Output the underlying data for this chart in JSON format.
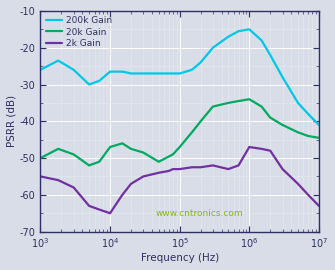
{
  "title": "",
  "xlabel": "Frequency (Hz)",
  "ylabel": "PSRR (dB)",
  "xlim": [
    1000,
    10000000
  ],
  "ylim": [
    -70,
    -10
  ],
  "yticks": [
    -70,
    -60,
    -50,
    -40,
    -30,
    -20,
    -10
  ],
  "plot_bg": "#d8dde8",
  "fig_bg": "#d8dde8",
  "grid_major_color": "#ffffff",
  "grid_minor_color": "#e8ecf2",
  "spine_color": "#2d3060",
  "tick_color": "#2d3060",
  "label_color": "#2d3060",
  "watermark": "www.cntronics.com",
  "watermark_color": "#88bb00",
  "series": [
    {
      "label": "200k Gain",
      "color": "#00c8e8",
      "lw": 1.6,
      "x": [
        1000,
        1800,
        3000,
        5000,
        7000,
        10000,
        15000,
        20000,
        30000,
        50000,
        80000,
        100000,
        150000,
        200000,
        300000,
        500000,
        700000,
        1000000,
        1500000,
        2000000,
        3000000,
        5000000,
        7000000,
        10000000
      ],
      "y": [
        -26,
        -23.5,
        -26,
        -30,
        -29,
        -26.5,
        -26.5,
        -27,
        -27,
        -27,
        -27,
        -27,
        -26,
        -24,
        -20,
        -17,
        -15.5,
        -15,
        -18,
        -22,
        -28,
        -35,
        -38,
        -41
      ]
    },
    {
      "label": "20k Gain",
      "color": "#00aa60",
      "lw": 1.6,
      "x": [
        1000,
        1800,
        3000,
        5000,
        7000,
        10000,
        15000,
        20000,
        30000,
        50000,
        80000,
        100000,
        150000,
        200000,
        300000,
        500000,
        700000,
        1000000,
        1500000,
        2000000,
        3000000,
        5000000,
        7000000,
        10000000
      ],
      "y": [
        -50,
        -47.5,
        -49,
        -52,
        -51,
        -47,
        -46,
        -47.5,
        -48.5,
        -51,
        -49,
        -47,
        -43,
        -40,
        -36,
        -35,
        -34.5,
        -34,
        -36,
        -39,
        -41,
        -43,
        -44,
        -44.5
      ]
    },
    {
      "label": "2k Gain",
      "color": "#7030a0",
      "lw": 1.6,
      "x": [
        1000,
        1800,
        3000,
        5000,
        7000,
        10000,
        15000,
        20000,
        30000,
        50000,
        70000,
        80000,
        100000,
        150000,
        200000,
        300000,
        500000,
        700000,
        1000000,
        1500000,
        2000000,
        3000000,
        5000000,
        7000000,
        10000000
      ],
      "y": [
        -55,
        -56,
        -58,
        -63,
        -64,
        -65,
        -60,
        -57,
        -55,
        -54,
        -53.5,
        -53,
        -53,
        -52.5,
        -52.5,
        -52,
        -53,
        -52,
        -47,
        -47.5,
        -48,
        -53,
        -57,
        -60,
        -63
      ]
    }
  ]
}
